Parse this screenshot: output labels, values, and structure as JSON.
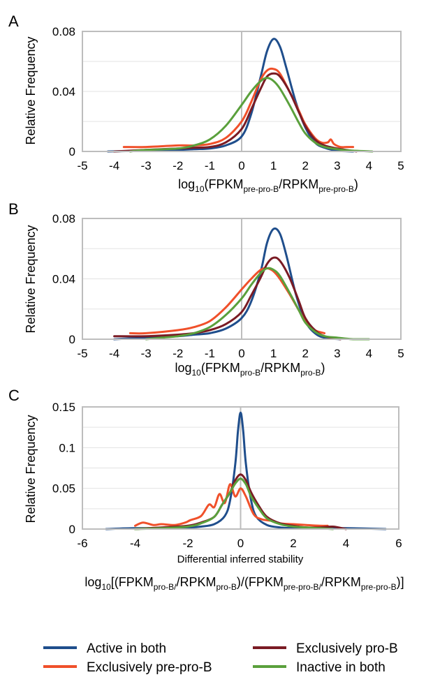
{
  "chart_data": [
    {
      "type": "line",
      "panel_label": "A",
      "ylabel": "Relative Frequency",
      "xlabel": {
        "base": "log",
        "base_sub": "10",
        "open": "(FPKM",
        "sub1": "pre-pro-B",
        "mid": "/RPKM",
        "sub2": "pre-pro-B",
        "close": ")"
      },
      "xlim": [
        -5,
        5
      ],
      "ylim": [
        0,
        0.08
      ],
      "xticks": [
        "-5",
        "-4",
        "-3",
        "-2",
        "-1",
        "0",
        "1",
        "2",
        "3",
        "4",
        "5"
      ],
      "yticks": [
        "0",
        "0.04",
        "0.08"
      ],
      "grid": "horizontal",
      "series": [
        {
          "name": "Active in both",
          "color": "#1f4e8c",
          "x": [
            -4.2,
            -3,
            -2,
            -1.5,
            -1,
            -0.5,
            0,
            0.3,
            0.6,
            0.8,
            1,
            1.2,
            1.4,
            1.7,
            2,
            2.3,
            2.6,
            3,
            3.5
          ],
          "y": [
            0,
            0.0005,
            0.001,
            0.0015,
            0.002,
            0.004,
            0.01,
            0.025,
            0.05,
            0.067,
            0.075,
            0.07,
            0.056,
            0.033,
            0.016,
            0.006,
            0.0025,
            0.0005,
            0
          ]
        },
        {
          "name": "Exclusively pre-pro-B",
          "color": "#f0502a",
          "x": [
            -3.7,
            -3,
            -2,
            -1.5,
            -1,
            -0.5,
            0,
            0.3,
            0.6,
            0.8,
            1,
            1.2,
            1.5,
            1.8,
            2,
            2.3,
            2.5,
            2.7,
            2.8,
            2.9,
            3.1,
            3.3,
            3.5
          ],
          "y": [
            0.003,
            0.003,
            0.004,
            0.004,
            0.005,
            0.009,
            0.02,
            0.033,
            0.048,
            0.054,
            0.055,
            0.052,
            0.04,
            0.027,
            0.018,
            0.009,
            0.006,
            0.006,
            0.008,
            0.005,
            0.003,
            0.003,
            0.003
          ]
        },
        {
          "name": "Exclusively pro-B",
          "color": "#7a1b24",
          "x": [
            -4,
            -3,
            -2,
            -1.5,
            -1,
            -0.5,
            0,
            0.3,
            0.6,
            0.8,
            1,
            1.2,
            1.5,
            1.8,
            2,
            2.3,
            2.6,
            3,
            3.6
          ],
          "y": [
            0,
            0.001,
            0.002,
            0.0025,
            0.003,
            0.006,
            0.015,
            0.028,
            0.042,
            0.05,
            0.052,
            0.05,
            0.04,
            0.026,
            0.017,
            0.008,
            0.004,
            0.002,
            0
          ]
        },
        {
          "name": "Inactive in both",
          "color": "#5aa03c",
          "x": [
            -3.5,
            -3,
            -2,
            -1.5,
            -1,
            -0.5,
            0,
            0.3,
            0.6,
            0.8,
            1,
            1.2,
            1.5,
            1.8,
            2,
            2.3,
            2.6,
            3,
            3.5,
            4.1
          ],
          "y": [
            0,
            0.001,
            0.002,
            0.004,
            0.008,
            0.017,
            0.031,
            0.04,
            0.047,
            0.049,
            0.047,
            0.042,
            0.031,
            0.019,
            0.012,
            0.006,
            0.003,
            0.0015,
            0.0005,
            0
          ]
        }
      ]
    },
    {
      "type": "line",
      "panel_label": "B",
      "ylabel": "Relative Frequency",
      "xlabel": {
        "base": "log",
        "base_sub": "10",
        "open": "(FPKM",
        "sub1": "pro-B",
        "mid": "/RPKM",
        "sub2": "pro-B",
        "close": ")"
      },
      "xlim": [
        -5,
        5
      ],
      "ylim": [
        0,
        0.08
      ],
      "xticks": [
        "-5",
        "-4",
        "-3",
        "-2",
        "-1",
        "0",
        "1",
        "2",
        "3",
        "4",
        "5"
      ],
      "yticks": [
        "0",
        "0.04",
        "0.08"
      ],
      "grid": "horizontal",
      "series": [
        {
          "name": "Active in both",
          "color": "#1f4e8c",
          "x": [
            -4,
            -3,
            -2,
            -1.5,
            -1,
            -0.5,
            0,
            0.3,
            0.6,
            0.8,
            1,
            1.2,
            1.4,
            1.7,
            2,
            2.3,
            2.6,
            3.1
          ],
          "y": [
            0,
            0.001,
            0.002,
            0.003,
            0.004,
            0.007,
            0.014,
            0.025,
            0.045,
            0.064,
            0.073,
            0.07,
            0.056,
            0.03,
            0.012,
            0.004,
            0.001,
            0
          ]
        },
        {
          "name": "Exclusively pre-pro-B",
          "color": "#f0502a",
          "x": [
            -3.5,
            -3,
            -2,
            -1.5,
            -1,
            -0.5,
            0,
            0.3,
            0.6,
            0.8,
            1,
            1.2,
            1.5,
            1.8,
            2,
            2.3,
            2.6
          ],
          "y": [
            0.004,
            0.004,
            0.006,
            0.008,
            0.012,
            0.021,
            0.033,
            0.04,
            0.046,
            0.047,
            0.045,
            0.04,
            0.03,
            0.019,
            0.012,
            0.006,
            0.004
          ]
        },
        {
          "name": "Exclusively pro-B",
          "color": "#7a1b24",
          "x": [
            -4,
            -3,
            -2,
            -1.5,
            -1,
            -0.5,
            0,
            0.3,
            0.6,
            0.8,
            1,
            1.2,
            1.5,
            1.8,
            2,
            2.3,
            2.6,
            3.1
          ],
          "y": [
            0.002,
            0.002,
            0.003,
            0.004,
            0.006,
            0.01,
            0.018,
            0.029,
            0.041,
            0.05,
            0.054,
            0.052,
            0.041,
            0.025,
            0.014,
            0.006,
            0.002,
            0
          ]
        },
        {
          "name": "Inactive in both",
          "color": "#5aa03c",
          "x": [
            -3,
            -2.5,
            -2,
            -1.5,
            -1,
            -0.5,
            0,
            0.3,
            0.6,
            0.8,
            1,
            1.2,
            1.5,
            1.8,
            2,
            2.3,
            2.6,
            3,
            3.5,
            4
          ],
          "y": [
            0,
            0.001,
            0.002,
            0.004,
            0.008,
            0.016,
            0.027,
            0.036,
            0.044,
            0.047,
            0.046,
            0.042,
            0.031,
            0.019,
            0.011,
            0.005,
            0.002,
            0.001,
            0,
            0
          ]
        }
      ]
    },
    {
      "type": "line",
      "panel_label": "C",
      "ylabel": "Relative Frequency",
      "xlabel_top": "Differential inferred stability",
      "xlabel": {
        "base": "log",
        "base_sub": "10",
        "open": "[(FPKM",
        "sub1": "pro-B/",
        "mid": "/RPKM",
        "sub2": "pro-B",
        "mid2": ")/(FPKM",
        "sub3": "pre-pro-B/",
        "mid3": "/RPKM",
        "sub4": "pre-pro-B",
        "close": ")]"
      },
      "xlim": [
        -6,
        6
      ],
      "ylim": [
        0,
        0.15
      ],
      "xticks": [
        "-6",
        "-4",
        "-2",
        "0",
        "2",
        "4",
        "6"
      ],
      "yticks": [
        "0",
        "0.05",
        "0.1",
        "0.15"
      ],
      "grid": "horizontal",
      "series": [
        {
          "name": "Active in both",
          "color": "#1f4e8c",
          "x": [
            -5.1,
            -4,
            -3,
            -2,
            -1.5,
            -1,
            -0.6,
            -0.4,
            -0.2,
            -0.1,
            0,
            0.1,
            0.2,
            0.4,
            0.6,
            1,
            1.5,
            2,
            3,
            4,
            5.5
          ],
          "y": [
            0,
            0.001,
            0.001,
            0.002,
            0.003,
            0.006,
            0.016,
            0.035,
            0.08,
            0.12,
            0.143,
            0.12,
            0.08,
            0.035,
            0.015,
            0.005,
            0.002,
            0.001,
            0.001,
            0.001,
            0
          ]
        },
        {
          "name": "Exclusively pre-pro-B",
          "color": "#f0502a",
          "x": [
            -4,
            -3.7,
            -3.3,
            -3,
            -2.5,
            -2.1,
            -1.9,
            -1.5,
            -1.2,
            -1.0,
            -0.8,
            -0.6,
            -0.4,
            -0.2,
            0,
            0.2,
            0.5,
            0.8,
            1.2,
            1.5,
            2,
            2.5,
            3,
            3.3
          ],
          "y": [
            0.004,
            0.008,
            0.005,
            0.006,
            0.005,
            0.008,
            0.011,
            0.016,
            0.03,
            0.027,
            0.043,
            0.032,
            0.055,
            0.04,
            0.05,
            0.04,
            0.018,
            0.012,
            0.01,
            0.007,
            0.006,
            0.005,
            0.004,
            0.004
          ]
        },
        {
          "name": "Exclusively pro-B",
          "color": "#7a1b24",
          "x": [
            -4,
            -3,
            -2,
            -1.5,
            -1,
            -0.7,
            -0.4,
            -0.2,
            0,
            0.2,
            0.4,
            0.7,
            1,
            1.5,
            2,
            2.5,
            3,
            3.5,
            4
          ],
          "y": [
            0,
            0.002,
            0.004,
            0.008,
            0.015,
            0.03,
            0.045,
            0.06,
            0.067,
            0.06,
            0.045,
            0.028,
            0.015,
            0.007,
            0.004,
            0.002,
            0.002,
            0.003,
            0
          ]
        },
        {
          "name": "Inactive in both",
          "color": "#5aa03c",
          "x": [
            -4,
            -3,
            -2,
            -1.5,
            -1,
            -0.7,
            -0.4,
            -0.2,
            0,
            0.2,
            0.4,
            0.7,
            1,
            1.5,
            2,
            3,
            3.5
          ],
          "y": [
            0,
            0.001,
            0.003,
            0.007,
            0.015,
            0.03,
            0.045,
            0.056,
            0.062,
            0.055,
            0.04,
            0.025,
            0.013,
            0.006,
            0.003,
            0.001,
            0
          ]
        }
      ]
    }
  ],
  "legend": {
    "placement": "bottom",
    "items": [
      {
        "label": "Active in both",
        "color": "#1f4e8c"
      },
      {
        "label": "Exclusively pre-pro-B",
        "color": "#f0502a"
      },
      {
        "label": "Exclusively pro-B",
        "color": "#7a1b24"
      },
      {
        "label": "Inactive in both",
        "color": "#5aa03c"
      }
    ]
  }
}
